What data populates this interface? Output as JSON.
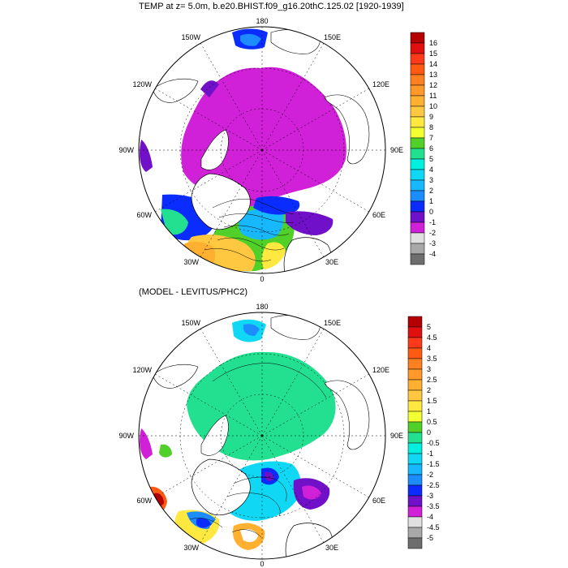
{
  "panels": [
    {
      "id": "top",
      "title": "TEMP at z=   5.0m, b.e20.BHIST.f09_g16.20thC.125.02 [1920-1939]",
      "lon_labels": {
        "180": "180",
        "150E": "150E",
        "120E": "120E",
        "90E": "90E",
        "60E": "60E",
        "30E": "30E",
        "0": "0",
        "30W": "30W",
        "60W": "60W",
        "90W": "90W",
        "120W": "120W",
        "150W": "150W"
      },
      "colorbar": {
        "labels": [
          "16",
          "15",
          "14",
          "13",
          "12",
          "11",
          "10",
          "9",
          "8",
          "7",
          "6",
          "5",
          "4",
          "3",
          "2",
          "1",
          "0",
          "-1",
          "-2",
          "-3",
          "-4"
        ],
        "colors": [
          "#b40000",
          "#e01010",
          "#ff3a1a",
          "#ff5a12",
          "#ff8020",
          "#ff9a2a",
          "#ffb030",
          "#ffc840",
          "#ffe840",
          "#f2ff30",
          "#50d028",
          "#22e090",
          "#00f0e0",
          "#10d8f4",
          "#18b8ff",
          "#1c8cff",
          "#0a2cff",
          "#7010c8",
          "#d020d8",
          "#e0e0e0",
          "#a8a8a8",
          "#6e6e6e"
        ]
      }
    },
    {
      "id": "bottom",
      "title": "(MODEL - LEVITUS/PHC2)",
      "lon_labels": {
        "180": "180",
        "150E": "150E",
        "120E": "120E",
        "90E": "90E",
        "60E": "60E",
        "30E": "30E",
        "0": "0",
        "30W": "30W",
        "60W": "60W",
        "90W": "90W",
        "120W": "120W",
        "150W": "150W"
      },
      "colorbar": {
        "labels": [
          "5",
          "4.5",
          "4",
          "3.5",
          "3",
          "2.5",
          "2",
          "1.5",
          "1",
          "0.5",
          "0",
          "-0.5",
          "-1",
          "-1.5",
          "-2",
          "-2.5",
          "-3",
          "-3.5",
          "-4",
          "-4.5",
          "-5"
        ],
        "colors": [
          "#b40000",
          "#e01010",
          "#ff3a1a",
          "#ff5a12",
          "#ff8020",
          "#ff9a2a",
          "#ffb030",
          "#ffc840",
          "#ffe840",
          "#f2ff30",
          "#50d028",
          "#22e090",
          "#00f0e0",
          "#10d8f4",
          "#18b8ff",
          "#1c8cff",
          "#0a2cff",
          "#7010c8",
          "#d020d8",
          "#e0e0e0",
          "#a8a8a8",
          "#6e6e6e"
        ]
      }
    }
  ]
}
